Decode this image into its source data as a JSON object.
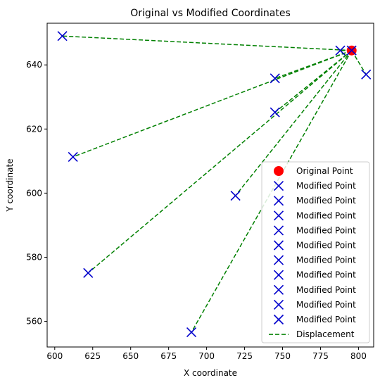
{
  "chart_data": {
    "type": "scatter",
    "title": "Original vs Modified Coordinates",
    "xlabel": "X coordinate",
    "ylabel": "Y coordinate",
    "xlim": [
      595,
      810
    ],
    "ylim": [
      552,
      653
    ],
    "xticks": [
      600,
      625,
      650,
      675,
      700,
      725,
      750,
      775,
      800
    ],
    "yticks": [
      560,
      580,
      600,
      620,
      640
    ],
    "grid": false,
    "legend_position": "lower-right",
    "series": [
      {
        "name": "Original Point",
        "marker": "circle",
        "color": "#ff0000",
        "points": [
          {
            "x": 795.5,
            "y": 644.5
          }
        ]
      },
      {
        "name": "Modified Point",
        "marker": "x",
        "color": "#0000cc",
        "points": [
          {
            "x": 605,
            "y": 649
          },
          {
            "x": 788,
            "y": 644.5
          },
          {
            "x": 795.5,
            "y": 644.5
          },
          {
            "x": 805,
            "y": 637
          },
          {
            "x": 745,
            "y": 635.8
          },
          {
            "x": 745,
            "y": 625.2
          },
          {
            "x": 612,
            "y": 611.3
          },
          {
            "x": 719,
            "y": 599.2
          },
          {
            "x": 622,
            "y": 575.1
          },
          {
            "x": 690,
            "y": 556.6
          }
        ]
      },
      {
        "name": "Displacement",
        "type": "line",
        "style": "dashed",
        "color": "#008000",
        "segments": [
          [
            {
              "x": 795.5,
              "y": 644.5
            },
            {
              "x": 605,
              "y": 649
            }
          ],
          [
            {
              "x": 795.5,
              "y": 644.5
            },
            {
              "x": 788,
              "y": 644.5
            }
          ],
          [
            {
              "x": 795.5,
              "y": 644.5
            },
            {
              "x": 795.5,
              "y": 644.5
            }
          ],
          [
            {
              "x": 795.5,
              "y": 644.5
            },
            {
              "x": 805,
              "y": 637
            }
          ],
          [
            {
              "x": 795.5,
              "y": 644.5
            },
            {
              "x": 745,
              "y": 635.8
            }
          ],
          [
            {
              "x": 795.5,
              "y": 644.5
            },
            {
              "x": 745,
              "y": 625.2
            }
          ],
          [
            {
              "x": 795.5,
              "y": 644.5
            },
            {
              "x": 612,
              "y": 611.3
            }
          ],
          [
            {
              "x": 795.5,
              "y": 644.5
            },
            {
              "x": 719,
              "y": 599.2
            }
          ],
          [
            {
              "x": 795.5,
              "y": 644.5
            },
            {
              "x": 622,
              "y": 575.1
            }
          ],
          [
            {
              "x": 795.5,
              "y": 644.5
            },
            {
              "x": 690,
              "y": 556.6
            }
          ]
        ]
      }
    ],
    "legend": [
      {
        "label": "Original Point",
        "marker": "circle",
        "color": "#ff0000"
      },
      {
        "label": "Modified Point",
        "marker": "x",
        "color": "#0000cc"
      },
      {
        "label": "Modified Point",
        "marker": "x",
        "color": "#0000cc"
      },
      {
        "label": "Modified Point",
        "marker": "x",
        "color": "#0000cc"
      },
      {
        "label": "Modified Point",
        "marker": "x",
        "color": "#0000cc"
      },
      {
        "label": "Modified Point",
        "marker": "x",
        "color": "#0000cc"
      },
      {
        "label": "Modified Point",
        "marker": "x",
        "color": "#0000cc"
      },
      {
        "label": "Modified Point",
        "marker": "x",
        "color": "#0000cc"
      },
      {
        "label": "Modified Point",
        "marker": "x",
        "color": "#0000cc"
      },
      {
        "label": "Modified Point",
        "marker": "x",
        "color": "#0000cc"
      },
      {
        "label": "Modified Point",
        "marker": "x",
        "color": "#0000cc"
      },
      {
        "label": "Displacement",
        "marker": "dashed-line",
        "color": "#008000"
      }
    ]
  }
}
